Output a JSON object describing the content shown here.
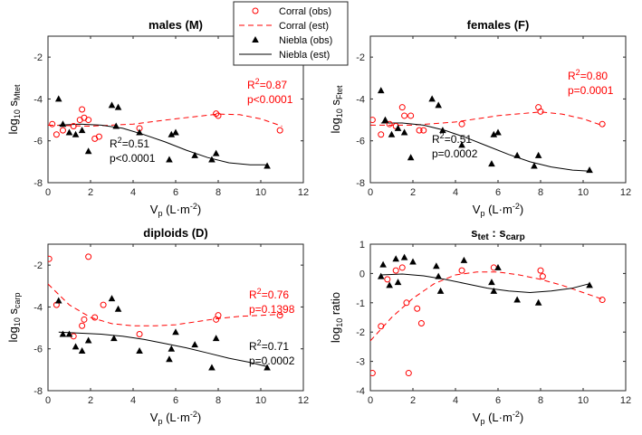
{
  "colors": {
    "corral": "#ff0000",
    "niebla": "#000000",
    "axis": "#262626"
  },
  "legend": {
    "entries": [
      {
        "label": "Corral (obs)",
        "key": "corral-obs"
      },
      {
        "label": "Corral (est)",
        "key": "corral-est"
      },
      {
        "label": "Niebla (obs)",
        "key": "niebla-obs"
      },
      {
        "label": "Niebla (est)",
        "key": "niebla-est"
      }
    ]
  },
  "chart_data": [
    {
      "type": "scatter",
      "title": "males (M)",
      "ylabel": {
        "base": "log",
        "base_sub": "10",
        "main": " s",
        "sub": "Mtet"
      },
      "xlabel": {
        "main": "V",
        "sub": "p",
        "unit": " (L·m",
        "sup": "-2",
        "close": ")"
      },
      "xlim": [
        0,
        12
      ],
      "ylim": [
        -8,
        -1
      ],
      "xticks": [
        0,
        2,
        4,
        6,
        8,
        10,
        12
      ],
      "yticks": [
        -8,
        -6,
        -4,
        -2
      ],
      "corral_obs": [
        [
          0.2,
          -5.2
        ],
        [
          0.4,
          -5.7
        ],
        [
          0.7,
          -5.5
        ],
        [
          1.2,
          -5.3
        ],
        [
          1.5,
          -5.0
        ],
        [
          1.6,
          -4.5
        ],
        [
          1.7,
          -4.9
        ],
        [
          1.9,
          -5.0
        ],
        [
          2.2,
          -5.9
        ],
        [
          2.4,
          -5.8
        ],
        [
          4.3,
          -5.4
        ],
        [
          7.9,
          -4.7
        ],
        [
          8.0,
          -4.8
        ],
        [
          10.9,
          -5.5
        ]
      ],
      "corral_est": [
        [
          0,
          -5.25
        ],
        [
          2,
          -5.3
        ],
        [
          4,
          -5.2
        ],
        [
          6,
          -4.95
        ],
        [
          8,
          -4.72
        ],
        [
          9,
          -4.75
        ],
        [
          10,
          -4.95
        ],
        [
          11,
          -5.3
        ]
      ],
      "niebla_obs": [
        [
          0.5,
          -4.0
        ],
        [
          0.7,
          -5.2
        ],
        [
          1.0,
          -5.6
        ],
        [
          1.3,
          -5.7
        ],
        [
          1.6,
          -5.5
        ],
        [
          1.9,
          -6.5
        ],
        [
          3.0,
          -4.3
        ],
        [
          3.2,
          -5.3
        ],
        [
          3.3,
          -4.4
        ],
        [
          4.3,
          -5.6
        ],
        [
          5.7,
          -6.9
        ],
        [
          5.8,
          -5.7
        ],
        [
          6.0,
          -5.6
        ],
        [
          6.9,
          -6.7
        ],
        [
          7.7,
          -6.9
        ],
        [
          7.9,
          -6.6
        ],
        [
          10.3,
          -7.2
        ]
      ],
      "niebla_est": [
        [
          0.5,
          -5.25
        ],
        [
          1.5,
          -5.2
        ],
        [
          2.5,
          -5.25
        ],
        [
          3.5,
          -5.4
        ],
        [
          4.5,
          -5.7
        ],
        [
          5.5,
          -6.05
        ],
        [
          6.5,
          -6.45
        ],
        [
          7.5,
          -6.8
        ],
        [
          8.5,
          -7.05
        ],
        [
          9.5,
          -7.15
        ],
        [
          10.3,
          -7.15
        ]
      ],
      "corral_stats": {
        "r2_label": "R",
        "r2_sup": "2",
        "r2_value": "=0.87",
        "p": "p<0.0001"
      },
      "niebla_stats": {
        "r2_label": "R",
        "r2_sup": "2",
        "r2_value": "=0.51",
        "p": "p<0.0001"
      }
    },
    {
      "type": "scatter",
      "title": "females (F)",
      "ylabel": {
        "base": "log",
        "base_sub": "10",
        "main": " s",
        "sub": "Ftet"
      },
      "xlabel": {
        "main": "V",
        "sub": "p",
        "unit": " (L·m",
        "sup": "-2",
        "close": ")"
      },
      "xlim": [
        0,
        12
      ],
      "ylim": [
        -8,
        -1
      ],
      "xticks": [
        0,
        2,
        4,
        6,
        8,
        10,
        12
      ],
      "yticks": [
        -8,
        -6,
        -4,
        -2
      ],
      "corral_obs": [
        [
          0.1,
          -5.0
        ],
        [
          0.5,
          -5.7
        ],
        [
          0.9,
          -5.2
        ],
        [
          1.2,
          -5.3
        ],
        [
          1.5,
          -4.4
        ],
        [
          1.6,
          -4.8
        ],
        [
          1.9,
          -4.8
        ],
        [
          2.3,
          -5.5
        ],
        [
          2.5,
          -5.5
        ],
        [
          4.3,
          -5.2
        ],
        [
          7.9,
          -4.4
        ],
        [
          8.0,
          -4.6
        ],
        [
          10.9,
          -5.2
        ]
      ],
      "corral_est": [
        [
          0,
          -5.25
        ],
        [
          2,
          -5.25
        ],
        [
          4,
          -5.1
        ],
        [
          6,
          -4.8
        ],
        [
          8,
          -4.62
        ],
        [
          9,
          -4.72
        ],
        [
          10,
          -4.95
        ],
        [
          11,
          -5.3
        ]
      ],
      "niebla_obs": [
        [
          0.5,
          -3.6
        ],
        [
          0.7,
          -5.0
        ],
        [
          1.0,
          -5.7
        ],
        [
          1.3,
          -5.4
        ],
        [
          1.6,
          -5.6
        ],
        [
          1.9,
          -6.8
        ],
        [
          2.9,
          -4.0
        ],
        [
          3.2,
          -4.3
        ],
        [
          3.4,
          -5.5
        ],
        [
          4.3,
          -6.2
        ],
        [
          5.7,
          -7.1
        ],
        [
          5.8,
          -5.7
        ],
        [
          6.0,
          -5.6
        ],
        [
          6.9,
          -6.7
        ],
        [
          7.7,
          -7.2
        ],
        [
          7.9,
          -6.7
        ],
        [
          10.3,
          -7.4
        ]
      ],
      "niebla_est": [
        [
          0.5,
          -5.15
        ],
        [
          1.5,
          -5.15
        ],
        [
          2.5,
          -5.25
        ],
        [
          3.5,
          -5.5
        ],
        [
          4.5,
          -5.85
        ],
        [
          5.5,
          -6.25
        ],
        [
          6.5,
          -6.65
        ],
        [
          7.5,
          -7.0
        ],
        [
          8.5,
          -7.25
        ],
        [
          9.5,
          -7.4
        ],
        [
          10.3,
          -7.45
        ]
      ],
      "corral_stats": {
        "r2_label": "R",
        "r2_sup": "2",
        "r2_value": "=0.80",
        "p": "p=0.0001"
      },
      "niebla_stats": {
        "r2_label": "R",
        "r2_sup": "2",
        "r2_value": "=0.51",
        "p": "p=0.0002"
      }
    },
    {
      "type": "scatter",
      "title": "diploids (D)",
      "ylabel": {
        "base": "log",
        "base_sub": "10",
        "main": " s",
        "sub": "carp"
      },
      "xlabel": {
        "main": "V",
        "sub": "p",
        "unit": " (L·m",
        "sup": "-2",
        "close": ")"
      },
      "xlim": [
        0,
        12
      ],
      "ylim": [
        -8,
        -1
      ],
      "xticks": [
        0,
        2,
        4,
        6,
        8,
        10,
        12
      ],
      "yticks": [
        -8,
        -6,
        -4,
        -2
      ],
      "corral_obs": [
        [
          0.05,
          -1.7
        ],
        [
          0.4,
          -3.9
        ],
        [
          1.2,
          -5.4
        ],
        [
          1.6,
          -4.9
        ],
        [
          1.7,
          -4.6
        ],
        [
          1.9,
          -1.6
        ],
        [
          2.2,
          -4.5
        ],
        [
          2.6,
          -3.9
        ],
        [
          4.3,
          -5.3
        ],
        [
          7.9,
          -4.6
        ],
        [
          8.0,
          -4.4
        ],
        [
          10.9,
          -4.4
        ]
      ],
      "corral_est": [
        [
          0,
          -2.9
        ],
        [
          1,
          -3.9
        ],
        [
          2,
          -4.5
        ],
        [
          3,
          -4.8
        ],
        [
          4,
          -4.9
        ],
        [
          5,
          -4.9
        ],
        [
          6,
          -4.85
        ],
        [
          7,
          -4.7
        ],
        [
          8,
          -4.55
        ],
        [
          9,
          -4.45
        ],
        [
          10,
          -4.4
        ],
        [
          11,
          -4.35
        ]
      ],
      "niebla_obs": [
        [
          0.5,
          -3.7
        ],
        [
          0.7,
          -5.3
        ],
        [
          1.0,
          -5.3
        ],
        [
          1.3,
          -5.9
        ],
        [
          1.6,
          -6.1
        ],
        [
          1.9,
          -5.6
        ],
        [
          3.0,
          -3.6
        ],
        [
          3.1,
          -5.5
        ],
        [
          3.3,
          -4.1
        ],
        [
          4.3,
          -6.1
        ],
        [
          5.7,
          -6.5
        ],
        [
          5.8,
          -6.0
        ],
        [
          6.0,
          -5.2
        ],
        [
          6.9,
          -5.8
        ],
        [
          7.7,
          -6.9
        ],
        [
          7.9,
          -5.5
        ],
        [
          10.3,
          -6.9
        ]
      ],
      "niebla_est": [
        [
          0.5,
          -5.2
        ],
        [
          1.5,
          -5.25
        ],
        [
          2.5,
          -5.3
        ],
        [
          3.5,
          -5.4
        ],
        [
          4.5,
          -5.55
        ],
        [
          5.5,
          -5.75
        ],
        [
          6.5,
          -5.95
        ],
        [
          7.5,
          -6.2
        ],
        [
          8.5,
          -6.45
        ],
        [
          9.5,
          -6.65
        ],
        [
          10.3,
          -6.85
        ]
      ],
      "corral_stats": {
        "r2_label": "R",
        "r2_sup": "2",
        "r2_value": "=0.76",
        "p": "p=0.1398"
      },
      "niebla_stats": {
        "r2_label": "R",
        "r2_sup": "2",
        "r2_value": "=0.71",
        "p": "p=0.0002"
      }
    },
    {
      "type": "scatter",
      "title": "s_tet : s_carp",
      "title_parts": {
        "a": "s",
        "a_sub": "tet",
        "sep": " : ",
        "b": "s",
        "b_sub": "carp"
      },
      "ylabel": {
        "base": "log",
        "base_sub": "10",
        "main": " ratio",
        "sub": ""
      },
      "xlabel": {
        "main": "V",
        "sub": "p",
        "unit": " (L·m",
        "sup": "-2",
        "close": ")"
      },
      "xlim": [
        0,
        12
      ],
      "ylim": [
        -4,
        1
      ],
      "xticks": [
        0,
        2,
        4,
        6,
        8,
        10,
        12
      ],
      "yticks": [
        -4,
        -3,
        -2,
        -1,
        0,
        1
      ],
      "corral_obs": [
        [
          0.1,
          -3.4
        ],
        [
          0.5,
          -1.8
        ],
        [
          0.8,
          -0.2
        ],
        [
          1.2,
          0.1
        ],
        [
          1.5,
          0.2
        ],
        [
          1.7,
          -1.0
        ],
        [
          1.8,
          -3.4
        ],
        [
          2.2,
          -1.2
        ],
        [
          2.4,
          -1.7
        ],
        [
          4.3,
          0.1
        ],
        [
          5.8,
          0.2
        ],
        [
          8.0,
          0.1
        ],
        [
          8.1,
          -0.1
        ],
        [
          10.9,
          -0.9
        ]
      ],
      "corral_est": [
        [
          0,
          -2.3
        ],
        [
          1,
          -1.5
        ],
        [
          2,
          -0.85
        ],
        [
          3,
          -0.35
        ],
        [
          4,
          -0.05
        ],
        [
          5,
          0.05
        ],
        [
          6,
          0.05
        ],
        [
          7,
          -0.05
        ],
        [
          8,
          -0.2
        ],
        [
          9,
          -0.4
        ],
        [
          10,
          -0.65
        ],
        [
          11,
          -0.9
        ]
      ],
      "niebla_obs": [
        [
          0.5,
          -0.1
        ],
        [
          0.6,
          0.3
        ],
        [
          0.9,
          -0.4
        ],
        [
          1.2,
          0.5
        ],
        [
          1.3,
          -0.3
        ],
        [
          1.6,
          0.55
        ],
        [
          2.0,
          0.4
        ],
        [
          3.1,
          0.25
        ],
        [
          3.2,
          -0.1
        ],
        [
          3.3,
          -0.6
        ],
        [
          4.4,
          0.45
        ],
        [
          5.7,
          -0.3
        ],
        [
          5.8,
          -0.6
        ],
        [
          6.0,
          0.2
        ],
        [
          6.9,
          -0.9
        ],
        [
          7.9,
          -1.0
        ],
        [
          10.3,
          -0.4
        ]
      ],
      "niebla_est": [
        [
          0.5,
          -0.05
        ],
        [
          1.5,
          -0.02
        ],
        [
          2.5,
          -0.08
        ],
        [
          3.5,
          -0.2
        ],
        [
          4.5,
          -0.35
        ],
        [
          5.5,
          -0.5
        ],
        [
          6.5,
          -0.6
        ],
        [
          7.5,
          -0.65
        ],
        [
          8.5,
          -0.6
        ],
        [
          9.5,
          -0.5
        ],
        [
          10.3,
          -0.35
        ]
      ]
    }
  ]
}
